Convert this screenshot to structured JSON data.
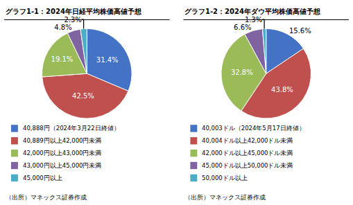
{
  "chart_data": [
    {
      "type": "pie",
      "title": "グラフ1-1：2024年日経平均株価高値予想",
      "categories": [
        "40,888円（2024年3月22日終値）",
        "40,889円以上42,000円未満",
        "42,000円以上43,000円未満",
        "43,000円以上45,000円未満",
        "45,000円以上"
      ],
      "values": [
        31.4,
        42.5,
        19.1,
        4.8,
        2.3
      ],
      "value_labels": [
        "31.4%",
        "42.5%",
        "19.1%",
        "4.8%",
        "2.3%"
      ],
      "colors": [
        "#4472C4",
        "#C0504D",
        "#9BBB59",
        "#8064A2",
        "#4BACC6"
      ],
      "data_labels": true,
      "legend": "bottom",
      "annotations": [
        "（出所）マネックス証券作成"
      ]
    },
    {
      "type": "pie",
      "title": "グラフ1-2：2024年ダウ平均株価高値予想",
      "categories": [
        "40,003ドル（2024年5月17日終値）",
        "40,004ドル以上42,000ドル未満",
        "42,000ドル以上45,000ドル未満",
        "45,000ドル以上50,000ドル未満",
        "50,000ドル以上"
      ],
      "values": [
        15.6,
        43.8,
        32.8,
        6.6,
        1.3
      ],
      "value_labels": [
        "15.6%",
        "43.8%",
        "32.8%",
        "6.6%",
        "1.3%"
      ],
      "colors": [
        "#4472C4",
        "#C0504D",
        "#9BBB59",
        "#8064A2",
        "#4BACC6"
      ],
      "data_labels": true,
      "legend": "bottom",
      "annotations": [
        "（出所）マネックス証券作成"
      ]
    }
  ]
}
